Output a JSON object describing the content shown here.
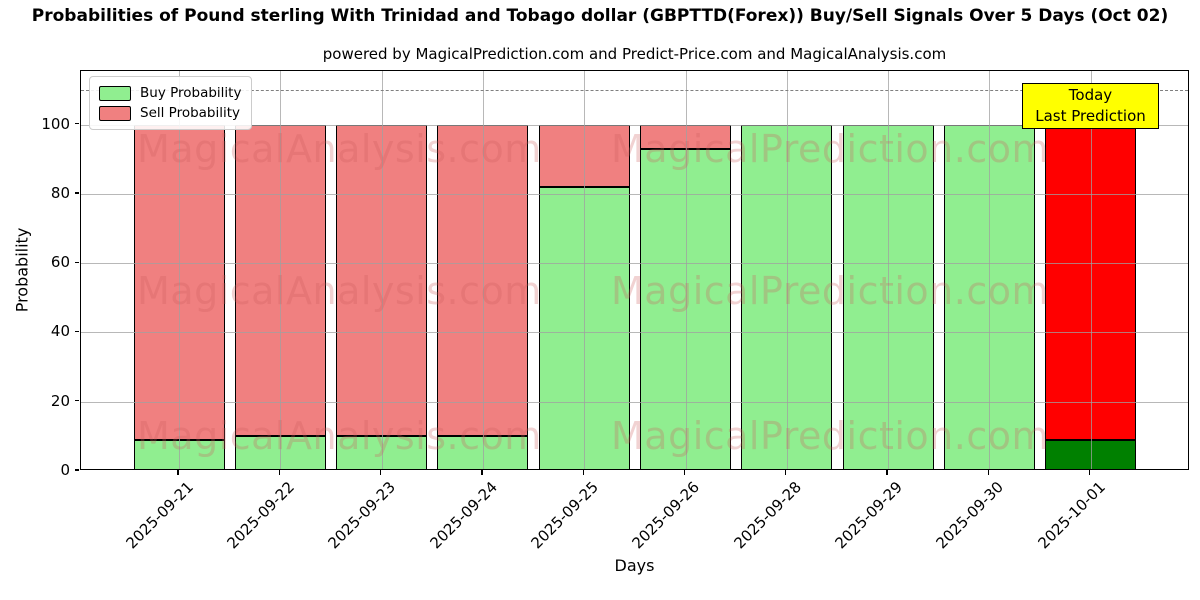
{
  "chart_data": {
    "type": "bar",
    "stacked": true,
    "title": "Probabilities of Pound sterling With Trinidad and Tobago dollar (GBPTTD(Forex)) Buy/Sell Signals Over 5 Days (Oct 02)",
    "subtitle": "powered by MagicalPrediction.com and Predict-Price.com and MagicalAnalysis.com",
    "xlabel": "Days",
    "ylabel": "Probability",
    "categories": [
      "2025-09-21",
      "2025-09-22",
      "2025-09-23",
      "2025-09-24",
      "2025-09-25",
      "2025-09-26",
      "2025-09-28",
      "2025-09-29",
      "2025-09-30",
      "2025-10-01"
    ],
    "series": [
      {
        "name": "Buy Probability",
        "values": [
          9,
          10,
          10,
          10,
          82,
          93,
          100,
          100,
          100,
          9
        ],
        "color": "#90ee90",
        "today_color": "#008000"
      },
      {
        "name": "Sell Probability",
        "values": [
          91,
          90,
          90,
          90,
          18,
          7,
          0,
          0,
          0,
          91
        ],
        "color": "#f08080",
        "today_color": "#ff0000"
      }
    ],
    "today_index": 9,
    "yticks": [
      0,
      20,
      40,
      60,
      80,
      100
    ],
    "ylim": [
      0,
      115.5
    ],
    "dashed_line_y": 110,
    "grid": true,
    "legend_position": "upper-left",
    "annotation": {
      "line1": "Today",
      "line2": "Last Prediction",
      "bg_color": "#ffff00"
    },
    "watermarks": [
      "MagicalAnalysis.com",
      "MagicalPrediction.com"
    ],
    "colors": {
      "grid": "#b0b0b0",
      "dashed_line": "#7f7f7f",
      "watermark": "#cd5c5c",
      "bar_edge": "#000000"
    }
  }
}
